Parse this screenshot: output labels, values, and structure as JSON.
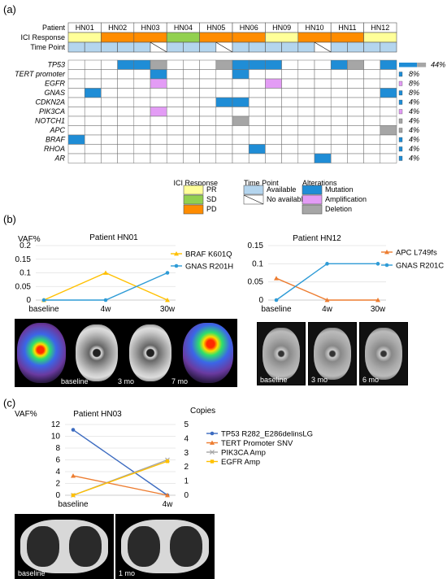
{
  "panel_labels": {
    "a": "(a)",
    "b": "(b)",
    "c": "(c)"
  },
  "colors": {
    "pr": "#ffff99",
    "sd": "#92d050",
    "pd": "#ff8c00",
    "available": "#b4d5ee",
    "mutation": "#1f8dd6",
    "amplification": "#e39cf5",
    "deletion": "#a6a6a6",
    "gold": "#ffc000",
    "blue_line": "#2e9bd6",
    "orange_line": "#ed7d31",
    "navy_line": "#3c6bc0",
    "gray_line": "#a5a5a5"
  },
  "oncoprint": {
    "row_labels": {
      "patient": "Patient",
      "ici": "ICI Response",
      "timepoint": "Time Point"
    },
    "patients": [
      "HN01",
      "HN02",
      "HN03",
      "HN04",
      "HN05",
      "HN06",
      "HN09",
      "HN10",
      "HN11",
      "HN12"
    ],
    "ici_response": [
      "PR",
      "PD",
      "PD",
      "SD",
      "PD",
      "PD",
      "PR",
      "PD",
      "PD",
      "PR"
    ],
    "timepoints": [
      [
        "A",
        "A"
      ],
      [
        "A",
        "A"
      ],
      [
        "A",
        "N"
      ],
      [
        "A",
        "A"
      ],
      [
        "A",
        "N"
      ],
      [
        "A",
        "A"
      ],
      [
        "A",
        "A"
      ],
      [
        "A",
        "N"
      ],
      [
        "A",
        "A"
      ],
      [
        "A",
        "A"
      ]
    ],
    "genes": [
      {
        "name": "TP53",
        "freq": "44%",
        "alt": {
          "3": "M",
          "4": "M",
          "5": "D",
          "9": "D",
          "10": "M",
          "11": "M",
          "12": "M",
          "16": "M",
          "17": "D",
          "19": "M",
          "20": "M"
        }
      },
      {
        "name": "TERT promoter",
        "freq": "8%",
        "alt": {
          "5": "M",
          "10": "M"
        }
      },
      {
        "name": "EGFR",
        "freq": "8%",
        "alt": {
          "5": "A",
          "12": "A"
        }
      },
      {
        "name": "GNAS",
        "freq": "8%",
        "alt": {
          "1": "M",
          "19": "M"
        }
      },
      {
        "name": "CDKN2A",
        "freq": "4%",
        "alt": {
          "9": "M",
          "10": "M"
        }
      },
      {
        "name": "PIK3CA",
        "freq": "4%",
        "alt": {
          "5": "A"
        }
      },
      {
        "name": "NOTCH1",
        "freq": "4%",
        "alt": {
          "10": "D"
        }
      },
      {
        "name": "APC",
        "freq": "4%",
        "alt": {
          "19": "D"
        }
      },
      {
        "name": "BRAF",
        "freq": "4%",
        "alt": {
          "0": "M"
        }
      },
      {
        "name": "RHOA",
        "freq": "4%",
        "alt": {
          "11": "M"
        }
      },
      {
        "name": "AR",
        "freq": "4%",
        "alt": {
          "15": "M"
        }
      }
    ],
    "freq_values": [
      0.44,
      0.08,
      0.08,
      0.08,
      0.04,
      0.04,
      0.04,
      0.04,
      0.04,
      0.04,
      0.04
    ],
    "legend": {
      "ici_title": "ICI Response",
      "pr": "PR",
      "sd": "SD",
      "pd": "PD",
      "time_title": "Time Point",
      "available": "Available",
      "not_available": "No available",
      "alt_title": "Alterations",
      "mutation": "Mutation",
      "amplification": "Amplification",
      "deletion": "Deletion"
    }
  },
  "chart_data": [
    {
      "type": "line",
      "title": "Patient HN01",
      "ylabel": "VAF%",
      "categories": [
        "baseline",
        "4w",
        "30w"
      ],
      "ylim": [
        0,
        0.2
      ],
      "yticks": [
        "0",
        "0.05",
        "0.1",
        "0.15",
        "0.2"
      ],
      "series": [
        {
          "name": "BRAF K601Q",
          "values": [
            0,
            0.1,
            0
          ],
          "color": "#ffc000",
          "marker": "triangle"
        },
        {
          "name": "GNAS R201H",
          "values": [
            0,
            0,
            0.1
          ],
          "color": "#2e9bd6",
          "marker": "circle"
        }
      ]
    },
    {
      "type": "line",
      "title": "Patient HN12",
      "categories": [
        "baseline",
        "4w",
        "30w"
      ],
      "ylim": [
        0,
        0.15
      ],
      "yticks": [
        "0",
        "0.05",
        "0.1",
        "0.15"
      ],
      "series": [
        {
          "name": "APC L749fs",
          "values": [
            0.06,
            0,
            0
          ],
          "color": "#ed7d31",
          "marker": "triangle"
        },
        {
          "name": "GNAS R201C",
          "values": [
            0,
            0.1,
            0.1
          ],
          "color": "#2e9bd6",
          "marker": "circle"
        }
      ]
    },
    {
      "type": "line",
      "title": "Patient HN03",
      "ylabel": "VAF%",
      "y2label": "Copies",
      "categories": [
        "baseline",
        "4w"
      ],
      "ylim": [
        0,
        12
      ],
      "yticks": [
        "0",
        "2",
        "4",
        "6",
        "8",
        "10",
        "12"
      ],
      "y2lim": [
        0,
        5
      ],
      "y2ticks": [
        "0",
        "1",
        "2",
        "3",
        "4",
        "5"
      ],
      "series": [
        {
          "name": "TP53 R282_E286delinsLG",
          "values": [
            11.1,
            0
          ],
          "axis": "left",
          "color": "#3c6bc0",
          "marker": "circle"
        },
        {
          "name": "TERT Promoter SNV",
          "values": [
            3.3,
            0
          ],
          "axis": "left",
          "color": "#ed7d31",
          "marker": "triangle"
        },
        {
          "name": "PIK3CA Amp",
          "values": [
            0,
            2.5
          ],
          "axis": "right",
          "color": "#a5a5a5",
          "marker": "cross"
        },
        {
          "name": "EGFR Amp",
          "values": [
            0,
            2.4
          ],
          "axis": "right",
          "color": "#ffc000",
          "marker": "square"
        }
      ]
    }
  ],
  "scans": {
    "b_left": [
      "baseline",
      "3 mo",
      "7 mo"
    ],
    "b_right": [
      "baseline",
      "3 mo",
      "6 mo"
    ],
    "c": [
      "baseline",
      "1 mo"
    ]
  }
}
